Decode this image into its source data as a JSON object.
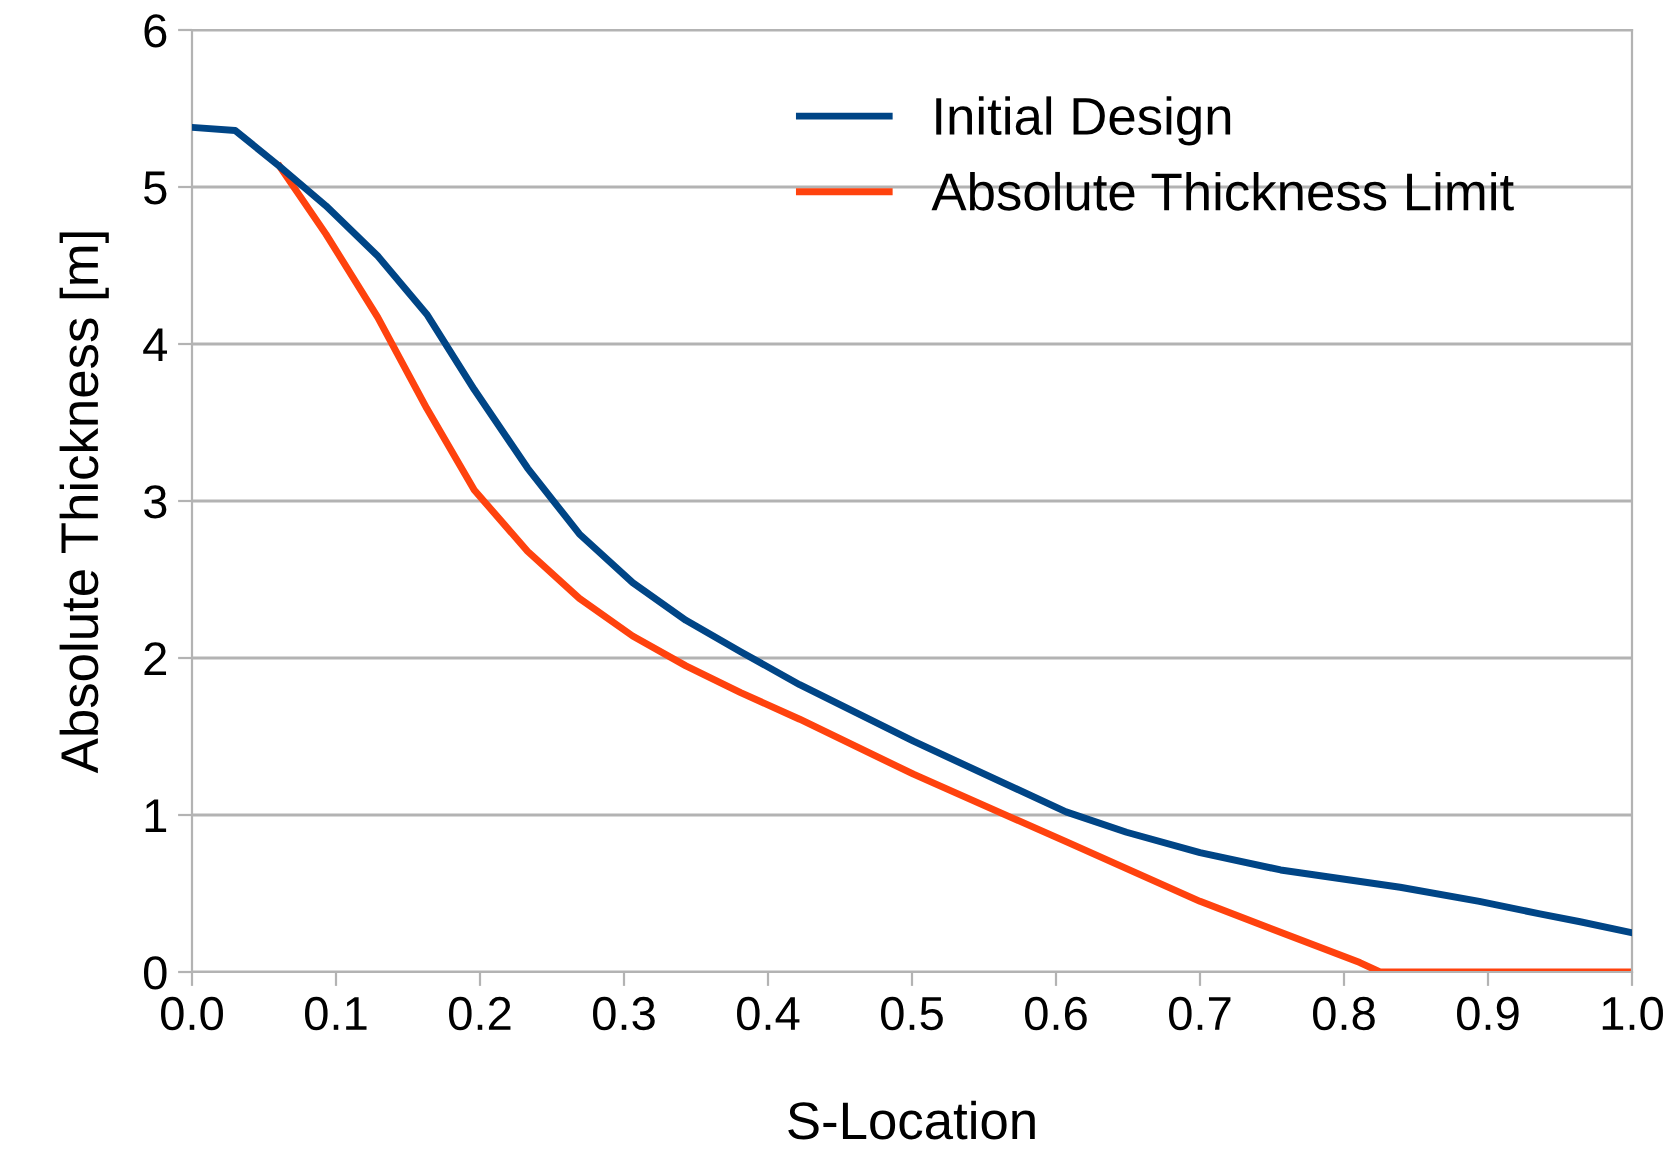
{
  "chart_data": {
    "type": "line",
    "xlabel": "S-Location",
    "ylabel": "Absolute Thickness [m]",
    "series": [
      {
        "name": "Initial Design",
        "color": "#004586",
        "x": [
          0,
          0.03,
          0.061,
          0.093,
          0.129,
          0.163,
          0.196,
          0.233,
          0.269,
          0.306,
          0.343,
          0.381,
          0.422,
          0.501,
          0.607,
          0.649,
          0.7,
          0.756,
          0.839,
          0.894,
          0.936,
          0.964,
          1.0
        ],
        "values": [
          5.38,
          5.36,
          5.13,
          4.88,
          4.56,
          4.19,
          3.71,
          3.21,
          2.79,
          2.48,
          2.24,
          2.04,
          1.83,
          1.47,
          1.02,
          0.89,
          0.76,
          0.65,
          0.54,
          0.45,
          0.37,
          0.32,
          0.25
        ]
      },
      {
        "name": "Absolute Thickness Limit",
        "color": "#ff420e",
        "x": [
          0.061,
          0.093,
          0.129,
          0.163,
          0.196,
          0.233,
          0.269,
          0.306,
          0.343,
          0.381,
          0.422,
          0.501,
          0.607,
          0.7,
          0.811,
          0.825,
          1.0
        ],
        "values": [
          5.13,
          4.7,
          4.17,
          3.59,
          3.07,
          2.68,
          2.38,
          2.14,
          1.95,
          1.78,
          1.61,
          1.26,
          0.83,
          0.45,
          0.06,
          0,
          0
        ]
      }
    ],
    "xlim": [
      0,
      1
    ],
    "xticks": [
      {
        "value": 0,
        "label": "0.0"
      },
      {
        "value": 0.1,
        "label": "0.1"
      },
      {
        "value": 0.2,
        "label": "0.2"
      },
      {
        "value": 0.3,
        "label": "0.3"
      },
      {
        "value": 0.4,
        "label": "0.4"
      },
      {
        "value": 0.5,
        "label": "0.5"
      },
      {
        "value": 0.6,
        "label": "0.6"
      },
      {
        "value": 0.7,
        "label": "0.7"
      },
      {
        "value": 0.8,
        "label": "0.8"
      },
      {
        "value": 0.9,
        "label": "0.9"
      },
      {
        "value": 1.0,
        "label": "1.0"
      }
    ],
    "ylim": [
      0,
      6
    ],
    "yticks": [
      0,
      1,
      2,
      3,
      4,
      5,
      6
    ],
    "grid": "y",
    "legend": "top",
    "marker": "none",
    "line_style": "solid"
  }
}
